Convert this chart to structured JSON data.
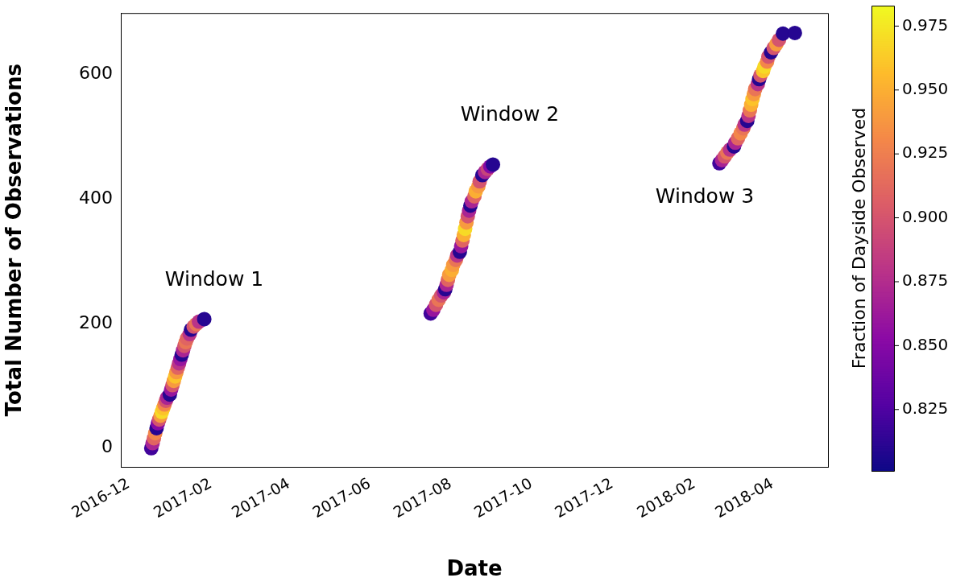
{
  "chart_data": {
    "type": "scatter",
    "xlabel": "Date",
    "ylabel": "Total Number of Observations",
    "clabel": "Fraction of Dayside Observed",
    "xlim": [
      "2016-11-25",
      "2018-05-13"
    ],
    "ylim": [
      -30,
      698
    ],
    "xticks": [
      "2016-12",
      "2017-02",
      "2017-04",
      "2017-06",
      "2017-08",
      "2017-10",
      "2017-12",
      "2018-02",
      "2018-04"
    ],
    "yticks": [
      0,
      200,
      400,
      600
    ],
    "clim": [
      0.801,
      0.983
    ],
    "cticks": [
      0.825,
      {
        "value": 0.85,
        "label": "0.850"
      },
      0.875,
      {
        "value": 0.9,
        "label": "0.900"
      },
      0.925,
      {
        "value": 0.95,
        "label": "0.950"
      },
      0.975
    ],
    "grid": false,
    "legend": false,
    "marker": "circle",
    "annotations": [
      "Window 1",
      "Window 2",
      "Window 3"
    ],
    "x": [
      "2016-12-18",
      "2016-12-19",
      "2016-12-20",
      "2016-12-21",
      "2016-12-22",
      "2016-12-23",
      "2016-12-24",
      "2016-12-25",
      "2016-12-26",
      "2016-12-27",
      "2016-12-28",
      "2016-12-29",
      "2016-12-30",
      "2017-01-01",
      "2017-01-02",
      "2017-01-03",
      "2017-01-04",
      "2017-01-05",
      "2017-01-06",
      "2017-01-07",
      "2017-01-08",
      "2017-01-09",
      "2017-01-10",
      "2017-01-11",
      "2017-01-12",
      "2017-01-13",
      "2017-01-14",
      "2017-01-16",
      "2017-01-17",
      "2017-01-19",
      "2017-01-21",
      "2017-01-23",
      "2017-01-27",
      "2017-07-17",
      "2017-07-19",
      "2017-07-21",
      "2017-07-23",
      "2017-07-25",
      "2017-07-27",
      "2017-07-28",
      "2017-07-29",
      "2017-07-30",
      "2017-07-31",
      "2017-08-02",
      "2017-08-03",
      "2017-08-05",
      "2017-08-06",
      "2017-08-08",
      "2017-08-09",
      "2017-08-10",
      "2017-08-11",
      "2017-08-12",
      "2017-08-13",
      "2017-08-14",
      "2017-08-15",
      "2017-08-16",
      "2017-08-17",
      "2017-08-19",
      "2017-08-20",
      "2017-08-22",
      "2017-08-23",
      "2017-08-25",
      "2017-08-27",
      "2017-08-29",
      "2017-08-31",
      "2017-09-02",
      "2018-02-20",
      "2018-02-22",
      "2018-02-24",
      "2018-02-26",
      "2018-02-28",
      "2018-03-03",
      "2018-03-04",
      "2018-03-06",
      "2018-03-08",
      "2018-03-10",
      "2018-03-11",
      "2018-03-13",
      "2018-03-14",
      "2018-03-15",
      "2018-03-16",
      "2018-03-17",
      "2018-03-18",
      "2018-03-19",
      "2018-03-21",
      "2018-03-22",
      "2018-03-23",
      "2018-03-25",
      "2018-03-26",
      "2018-03-28",
      "2018-03-29",
      "2018-03-31",
      "2018-04-02",
      "2018-04-04",
      "2018-04-06",
      "2018-04-09",
      "2018-04-18"
    ],
    "values": [
      0,
      8,
      16,
      24,
      32,
      40,
      46,
      52,
      58,
      64,
      70,
      76,
      81,
      86,
      94,
      101,
      108,
      115,
      122,
      129,
      136,
      143,
      150,
      157,
      164,
      170,
      176,
      183,
      190,
      195,
      199,
      203,
      207,
      216,
      222,
      230,
      238,
      245,
      250,
      255,
      262,
      270,
      278,
      286,
      294,
      302,
      309,
      315,
      324,
      333,
      342,
      352,
      362,
      372,
      381,
      389,
      396,
      404,
      412,
      420,
      428,
      438,
      443,
      448,
      452,
      455,
      457,
      462,
      468,
      474,
      479,
      484,
      490,
      497,
      505,
      513,
      519,
      525,
      533,
      542,
      551,
      560,
      568,
      576,
      584,
      592,
      598,
      605,
      612,
      620,
      628,
      635,
      642,
      648,
      655,
      665,
      666
    ],
    "cvalues": [
      0.82,
      0.87,
      0.91,
      0.93,
      0.81,
      0.85,
      0.9,
      0.94,
      0.97,
      0.96,
      0.93,
      0.9,
      0.87,
      0.81,
      0.86,
      0.9,
      0.94,
      0.96,
      0.94,
      0.91,
      0.88,
      0.86,
      0.81,
      0.87,
      0.9,
      0.92,
      0.91,
      0.88,
      0.81,
      0.9,
      0.92,
      0.88,
      0.81,
      0.82,
      0.86,
      0.9,
      0.92,
      0.9,
      0.87,
      0.81,
      0.87,
      0.91,
      0.94,
      0.95,
      0.94,
      0.92,
      0.88,
      0.81,
      0.86,
      0.91,
      0.95,
      0.97,
      0.94,
      0.9,
      0.87,
      0.81,
      0.87,
      0.91,
      0.95,
      0.94,
      0.9,
      0.81,
      0.87,
      0.89,
      0.85,
      0.81,
      0.82,
      0.87,
      0.9,
      0.92,
      0.88,
      0.81,
      0.87,
      0.91,
      0.93,
      0.92,
      0.88,
      0.81,
      0.88,
      0.92,
      0.95,
      0.96,
      0.94,
      0.92,
      0.88,
      0.81,
      0.9,
      0.96,
      0.97,
      0.93,
      0.9,
      0.81,
      0.9,
      0.94,
      0.9,
      0.81,
      0.81
    ]
  }
}
